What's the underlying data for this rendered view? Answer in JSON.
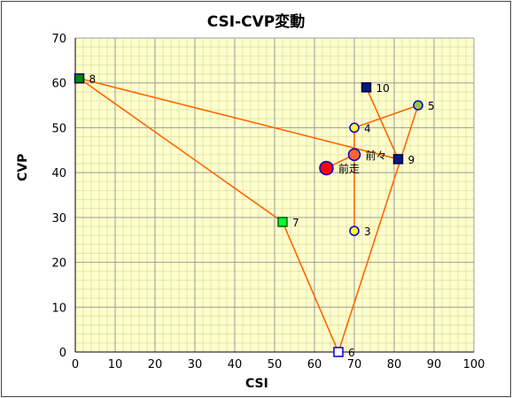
{
  "chart_data": {
    "type": "scatter",
    "title": "CSI-CVP変動",
    "xlabel": "CSI",
    "ylabel": "CVP",
    "xlim": [
      0,
      100
    ],
    "ylim": [
      0,
      70
    ],
    "x_ticks": [
      0,
      10,
      20,
      30,
      40,
      50,
      60,
      70,
      80,
      90,
      100
    ],
    "y_ticks": [
      0,
      10,
      20,
      30,
      40,
      50,
      60,
      70
    ],
    "grid": true,
    "plot_background": "#ffffcc",
    "line_color": "#ff6600",
    "points": [
      {
        "label": "前走",
        "x": 63,
        "y": 41,
        "shape": "circle",
        "fill": "#ff0000",
        "stroke": "#0000cc",
        "size": "large"
      },
      {
        "label": "前々",
        "x": 70,
        "y": 44,
        "shape": "circle",
        "fill": "#ff6633",
        "stroke": "#0000cc",
        "size": "medium"
      },
      {
        "label": "3",
        "x": 70,
        "y": 27,
        "shape": "circle",
        "fill": "#ffff33",
        "stroke": "#0000cc",
        "size": "small"
      },
      {
        "label": "4",
        "x": 70,
        "y": 50,
        "shape": "circle",
        "fill": "#ffff33",
        "stroke": "#0000cc",
        "size": "small"
      },
      {
        "label": "5",
        "x": 86,
        "y": 55,
        "shape": "circle",
        "fill": "#99cc33",
        "stroke": "#0000cc",
        "size": "small"
      },
      {
        "label": "6",
        "x": 66,
        "y": 0,
        "shape": "square",
        "fill": "#ffffff",
        "stroke": "#0000cc",
        "size": "small"
      },
      {
        "label": "7",
        "x": 52,
        "y": 29,
        "shape": "square",
        "fill": "#00ff33",
        "stroke": "#006600",
        "size": "small"
      },
      {
        "label": "8",
        "x": 1,
        "y": 61,
        "shape": "square",
        "fill": "#008800",
        "stroke": "#000066",
        "size": "small"
      },
      {
        "label": "9",
        "x": 81,
        "y": 43,
        "shape": "square",
        "fill": "#001a80",
        "stroke": "#000044",
        "size": "small"
      },
      {
        "label": "10",
        "x": 73,
        "y": 59,
        "shape": "square",
        "fill": "#001a80",
        "stroke": "#000044",
        "size": "small"
      }
    ],
    "connections": [
      [
        "前走",
        "前々"
      ],
      [
        "前々",
        "3"
      ],
      [
        "前々",
        "4"
      ],
      [
        "4",
        "5"
      ],
      [
        "5",
        "6"
      ],
      [
        "6",
        "7"
      ],
      [
        "7",
        "8"
      ],
      [
        "8",
        "9"
      ],
      [
        "9",
        "10"
      ]
    ]
  }
}
